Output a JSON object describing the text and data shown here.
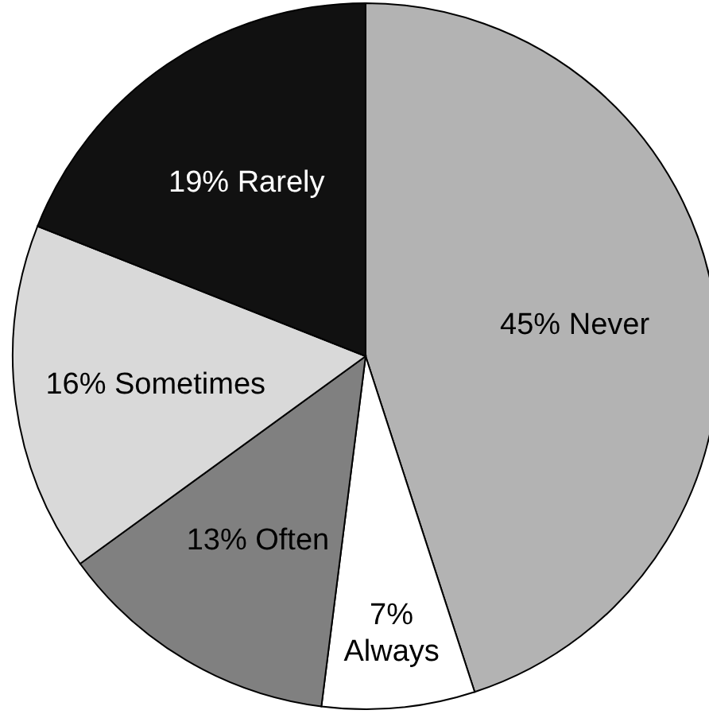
{
  "chart_data": {
    "type": "pie",
    "categories": [
      "Never",
      "Always",
      "Often",
      "Sometimes",
      "Rarely"
    ],
    "values": [
      45,
      7,
      13,
      16,
      19
    ],
    "value_labels": [
      "45%",
      "7%",
      "13%",
      "16%",
      "19%"
    ],
    "colors": [
      "#b3b3b3",
      "#ffffff",
      "#808080",
      "#d9d9d9",
      "#111111"
    ]
  }
}
